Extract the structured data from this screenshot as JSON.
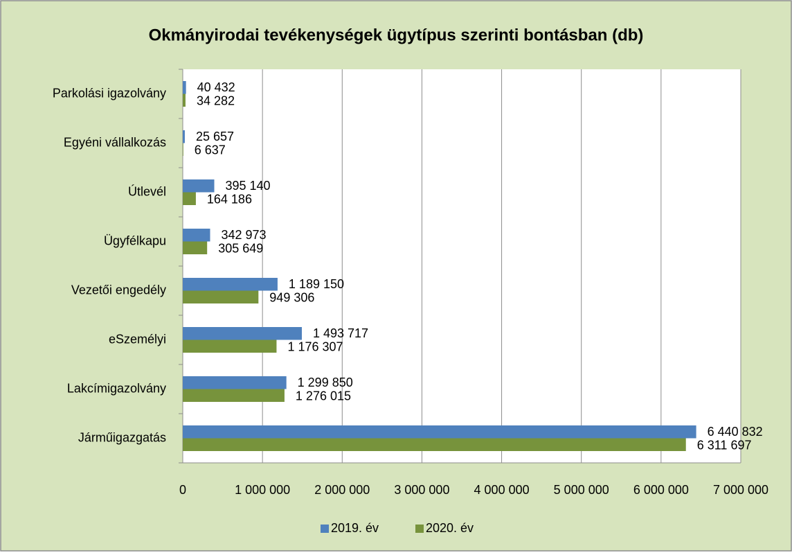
{
  "chart_data": {
    "type": "hbar",
    "title": "Okmányirodai tevékenységek ügytípus szerinti bontásban (db)",
    "categories": [
      "Parkolási igazolvány",
      "Egyéni vállalkozás",
      "Útlevél",
      "Ügyfélkapu",
      "Vezetői engedély",
      "eSzemélyi",
      "Lakcímigazolvány",
      "Járműigazgatás"
    ],
    "series": [
      {
        "name": "2019. év",
        "color": "#4f81bd",
        "values": [
          40432,
          25657,
          395140,
          342973,
          1189150,
          1493717,
          1299850,
          6440832
        ],
        "value_labels": [
          "40 432",
          "25 657",
          "395 140",
          "342 973",
          "1 189 150",
          "1 493 717",
          "1 299 850",
          "6 440 832"
        ]
      },
      {
        "name": "2020. év",
        "color": "#77933c",
        "values": [
          34282,
          6637,
          164186,
          305649,
          949306,
          1176307,
          1276015,
          6311697
        ],
        "value_labels": [
          "34 282",
          "6 637",
          "164 186",
          "305 649",
          "949 306",
          "1 176 307",
          "1 276 015",
          "6 311 697"
        ]
      }
    ],
    "xlim": [
      0,
      7000000
    ],
    "xticks": [
      0,
      {
        "value": 1000000,
        "label": "1 000 000"
      },
      {
        "value": 2000000,
        "label": "2 000 000"
      },
      {
        "value": 3000000,
        "label": "3 000 000"
      },
      {
        "value": 4000000,
        "label": "4 000 000"
      },
      {
        "value": 5000000,
        "label": "5 000 000"
      },
      {
        "value": 6000000,
        "label": "6 000 000"
      },
      {
        "value": 7000000,
        "label": "7 000 000"
      }
    ],
    "grid": true,
    "legend": "bottom"
  }
}
